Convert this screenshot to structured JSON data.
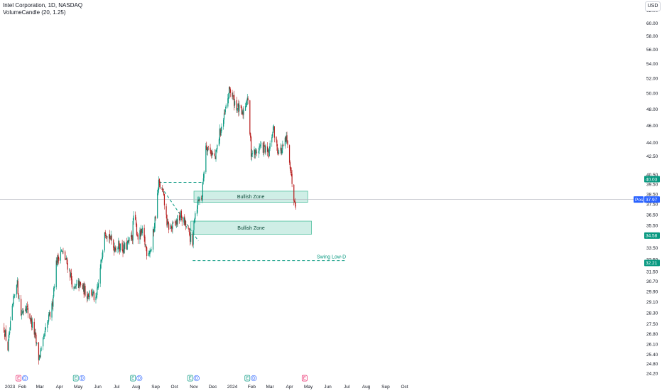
{
  "legend": {
    "title": "Intel Corporation, 1D, NASDAQ",
    "indicator": "VolumeCandle (20, 1.25)"
  },
  "currency_button": "USD",
  "colors": {
    "up": "#089981",
    "down": "#b71c1c",
    "zone_fill": "#cfeee6",
    "zone_border": "#4fbf9f",
    "dash": "#089981",
    "price_line": "#b2b5be",
    "axis_text": "#131722",
    "blue_tag": "#2962ff"
  },
  "chart_data": {
    "type": "candlestick",
    "title": "Intel Corporation, 1D, NASDAQ",
    "ylim": [
      23.8,
      63.0
    ],
    "y_scale": "log",
    "y_ticks": [
      "62.00",
      "60.00",
      "58.00",
      "56.00",
      "54.00",
      "52.00",
      "50.00",
      "48.00",
      "46.00",
      "44.00",
      "42.50",
      "40.50",
      "39.50",
      "38.50",
      "37.50",
      "36.50",
      "35.50",
      "34.50",
      "33.50",
      "32.50",
      "31.50",
      "30.70",
      "29.90",
      "29.10",
      "28.30",
      "27.50",
      "26.80",
      "26.10",
      "25.40",
      "24.80",
      "24.20"
    ],
    "x_ticks": [
      "2023",
      "Feb",
      "Mar",
      "Apr",
      "May",
      "Jun",
      "Jul",
      "Aug",
      "Sep",
      "Oct",
      "Nov",
      "Dec",
      "2024",
      "Feb",
      "Mar",
      "Apr",
      "May",
      "Jun",
      "Jul",
      "Aug",
      "Sep",
      "Oct"
    ],
    "price_anchors": [
      [
        "2023-01-03",
        27.2
      ],
      [
        "2023-01-09",
        25.8
      ],
      [
        "2023-01-16",
        28.5
      ],
      [
        "2023-01-23",
        30.8
      ],
      [
        "2023-01-30",
        28.2
      ],
      [
        "2023-02-06",
        28.9
      ],
      [
        "2023-02-13",
        28.0
      ],
      [
        "2023-02-20",
        26.9
      ],
      [
        "2023-02-27",
        25.2
      ],
      [
        "2023-03-03",
        25.6
      ],
      [
        "2023-03-10",
        27.0
      ],
      [
        "2023-03-20",
        28.7
      ],
      [
        "2023-03-27",
        32.2
      ],
      [
        "2023-04-03",
        33.3
      ],
      [
        "2023-04-10",
        32.6
      ],
      [
        "2023-04-17",
        31.6
      ],
      [
        "2023-04-24",
        29.9
      ],
      [
        "2023-05-01",
        30.5
      ],
      [
        "2023-05-08",
        30.2
      ],
      [
        "2023-05-15",
        29.7
      ],
      [
        "2023-05-22",
        29.9
      ],
      [
        "2023-05-29",
        29.1
      ],
      [
        "2023-06-05",
        31.6
      ],
      [
        "2023-06-12",
        35.2
      ],
      [
        "2023-06-19",
        34.6
      ],
      [
        "2023-06-26",
        33.6
      ],
      [
        "2023-07-05",
        33.7
      ],
      [
        "2023-07-12",
        33.4
      ],
      [
        "2023-07-19",
        33.8
      ],
      [
        "2023-07-26",
        34.6
      ],
      [
        "2023-07-28",
        36.4
      ],
      [
        "2023-08-04",
        34.5
      ],
      [
        "2023-08-11",
        34.8
      ],
      [
        "2023-08-18",
        33.2
      ],
      [
        "2023-08-25",
        33.4
      ],
      [
        "2023-09-01",
        36.5
      ],
      [
        "2023-09-06",
        39.6
      ],
      [
        "2023-09-13",
        38.4
      ],
      [
        "2023-09-20",
        35.4
      ],
      [
        "2023-09-27",
        35.3
      ],
      [
        "2023-10-04",
        35.8
      ],
      [
        "2023-10-11",
        36.4
      ],
      [
        "2023-10-18",
        35.6
      ],
      [
        "2023-10-25",
        34.6
      ],
      [
        "2023-10-30",
        33.6
      ],
      [
        "2023-11-01",
        36.2
      ],
      [
        "2023-11-08",
        37.9
      ],
      [
        "2023-11-14",
        38.4
      ],
      [
        "2023-11-20",
        43.8
      ],
      [
        "2023-11-28",
        43.0
      ],
      [
        "2023-12-05",
        42.2
      ],
      [
        "2023-12-12",
        45.1
      ],
      [
        "2023-12-19",
        46.9
      ],
      [
        "2023-12-28",
        50.6
      ],
      [
        "2024-01-03",
        49.2
      ],
      [
        "2024-01-10",
        48.1
      ],
      [
        "2024-01-17",
        47.3
      ],
      [
        "2024-01-25",
        49.6
      ],
      [
        "2024-01-31",
        43.0
      ],
      [
        "2024-02-07",
        42.8
      ],
      [
        "2024-02-14",
        43.6
      ],
      [
        "2024-02-21",
        43.3
      ],
      [
        "2024-02-28",
        42.6
      ],
      [
        "2024-03-06",
        45.8
      ],
      [
        "2024-03-13",
        43.2
      ],
      [
        "2024-03-20",
        43.1
      ],
      [
        "2024-03-27",
        44.4
      ],
      [
        "2024-04-01",
        42.3
      ],
      [
        "2024-04-04",
        40.3
      ],
      [
        "2024-04-08",
        38.3
      ],
      [
        "2024-04-11",
        37.8
      ]
    ],
    "zones": [
      {
        "label": "Bullish Zone",
        "from": "2023-11-01",
        "to": "2024-04-30",
        "low": 37.7,
        "high": 38.8
      },
      {
        "label": "Bullish Zone",
        "from": "2023-10-27",
        "to": "2024-05-06",
        "low": 34.7,
        "high": 35.9
      }
    ],
    "dashed_levels": [
      {
        "from": "2023-09-06",
        "to": "2023-11-14",
        "value": 39.7
      },
      {
        "from": "2023-10-30",
        "to": "2024-06-30",
        "value": 32.4,
        "label": "Swing Low-D"
      }
    ],
    "trendline": {
      "from": [
        "2023-09-06",
        39.6
      ],
      "to": [
        "2023-11-08",
        34.1
      ]
    },
    "price_tags": [
      {
        "text": "40.03",
        "value": 40.03,
        "color": "#089981"
      },
      {
        "text": "37.97",
        "value": 37.97,
        "color": "#2962ff",
        "prefix": "Pos"
      },
      {
        "text": "34.58",
        "value": 34.58,
        "color": "#089981"
      },
      {
        "text": "32.21",
        "value": 32.21,
        "color": "#089981"
      }
    ],
    "current_price": 37.97,
    "events": [
      {
        "date": "2023-01-26",
        "kinds": [
          "E",
          "D"
        ]
      },
      {
        "date": "2023-04-27",
        "kinds": [
          "E",
          "D"
        ]
      },
      {
        "date": "2023-07-27",
        "kinds": [
          "E",
          "D"
        ]
      },
      {
        "date": "2023-10-26",
        "kinds": [
          "E",
          "D"
        ]
      },
      {
        "date": "2024-01-25",
        "kinds": [
          "E",
          "D"
        ]
      },
      {
        "date": "2024-04-25",
        "kinds": [
          "E"
        ]
      }
    ]
  }
}
